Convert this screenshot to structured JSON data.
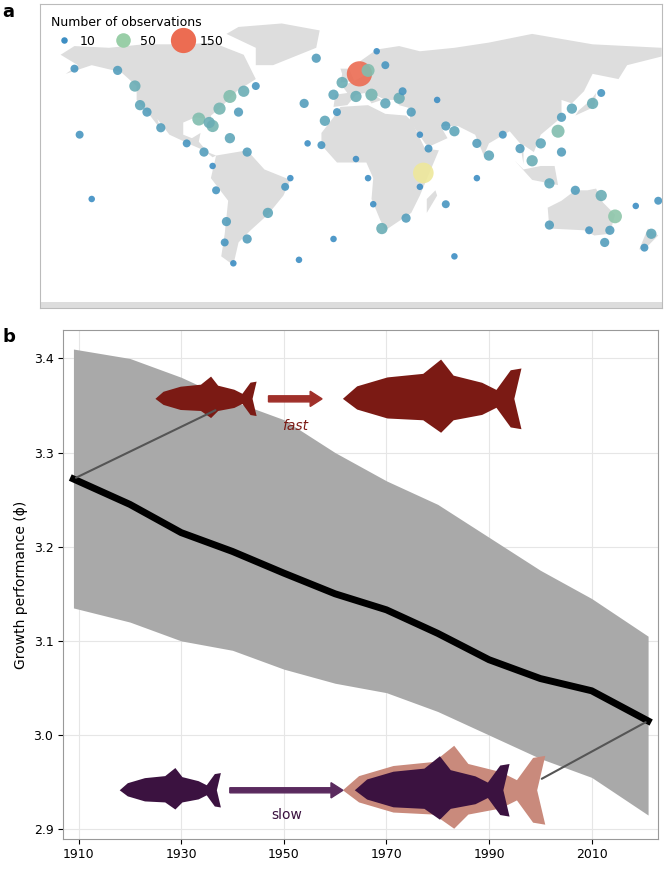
{
  "chart_data": [
    {
      "label": "a",
      "type": "scatter",
      "tick_labels": false,
      "xlim": [
        -180,
        180
      ],
      "ylim": [
        -80,
        95
      ],
      "legend": "upper left",
      "size_legend": {
        "title": "Number of observations",
        "values": [
          10,
          50,
          150
        ]
      },
      "lon": [
        5,
        -5,
        10,
        20,
        -20,
        15,
        -10,
        3,
        12,
        20,
        28,
        35,
        30,
        50,
        -8,
        -17,
        3,
        10,
        13,
        18,
        32,
        40,
        45,
        40,
        55,
        60,
        73,
        80,
        88,
        98,
        105,
        110,
        120,
        122,
        128,
        140,
        145,
        122,
        115,
        130,
        145,
        153,
        150,
        138,
        115,
        147,
        174,
        170,
        165,
        178,
        -150,
        -157,
        -160,
        -135,
        -125,
        -122,
        -118,
        -110,
        -95,
        -85,
        -80,
        -78,
        -72,
        -73,
        -68,
        -60,
        -48,
        -38,
        -35,
        -60,
        -70,
        -80,
        -88,
        -82,
        -76,
        -70,
        -62,
        -55,
        -65,
        -27,
        -15,
        -25,
        -10,
        55,
        73,
        60,
        -30,
        42
      ],
      "lat": [
        55,
        50,
        57,
        60,
        64,
        68,
        43,
        42,
        43,
        38,
        41,
        33,
        45,
        40,
        33,
        14,
        6,
        -5,
        -20,
        -34,
        -28,
        -10,
        12,
        20,
        25,
        22,
        15,
        8,
        20,
        12,
        5,
        15,
        22,
        30,
        35,
        38,
        44,
        10,
        -8,
        -12,
        -15,
        -27,
        -35,
        -35,
        -32,
        -42,
        -37,
        -45,
        -21,
        -18,
        -17,
        20,
        58,
        57,
        48,
        37,
        33,
        24,
        15,
        10,
        2,
        -12,
        -30,
        -42,
        -54,
        -40,
        -25,
        -10,
        -5,
        10,
        18,
        25,
        29,
        27,
        35,
        42,
        45,
        48,
        33,
        38,
        28,
        15,
        -40,
        -20,
        -5,
        -50,
        -52,
        -2
      ],
      "n": [
        150,
        30,
        40,
        15,
        20,
        10,
        25,
        30,
        35,
        25,
        30,
        20,
        15,
        10,
        15,
        15,
        10,
        10,
        10,
        30,
        20,
        10,
        15,
        10,
        20,
        25,
        20,
        25,
        15,
        20,
        30,
        25,
        40,
        20,
        25,
        30,
        15,
        20,
        25,
        20,
        30,
        45,
        20,
        15,
        20,
        20,
        25,
        15,
        10,
        15,
        10,
        15,
        15,
        20,
        30,
        25,
        20,
        20,
        15,
        20,
        10,
        15,
        20,
        15,
        10,
        20,
        25,
        15,
        10,
        20,
        25,
        35,
        40,
        30,
        35,
        40,
        30,
        15,
        20,
        20,
        25,
        10,
        10,
        15,
        10,
        10,
        10,
        100
      ]
    },
    {
      "label": "b",
      "type": "line",
      "y_label": "Growth performance (ϕ)",
      "x": [
        1909,
        1920,
        1930,
        1940,
        1950,
        1960,
        1970,
        1980,
        1990,
        2000,
        2010,
        2021
      ],
      "values": [
        3.272,
        3.245,
        3.215,
        3.195,
        3.172,
        3.15,
        3.133,
        3.108,
        3.08,
        3.06,
        3.047,
        3.015
      ],
      "lower": [
        3.135,
        3.12,
        3.1,
        3.09,
        3.07,
        3.055,
        3.045,
        3.025,
        3.0,
        2.975,
        2.955,
        2.915
      ],
      "upper": [
        3.41,
        3.4,
        3.38,
        3.355,
        3.335,
        3.3,
        3.27,
        3.245,
        3.21,
        3.175,
        3.145,
        3.105
      ],
      "color": "#000000",
      "band_color": "#a9a9a9",
      "xlim": [
        1907,
        2023
      ],
      "ylim": [
        2.89,
        3.43
      ],
      "xticks": [
        1910,
        1930,
        1950,
        1970,
        1990,
        2010
      ],
      "yticks": [
        2.9,
        {
          "value": 3,
          "label": "3.0"
        },
        3.1,
        3.2,
        3.3,
        3.4
      ],
      "grid": true,
      "annotations": [
        "fast",
        "slow"
      ]
    }
  ]
}
